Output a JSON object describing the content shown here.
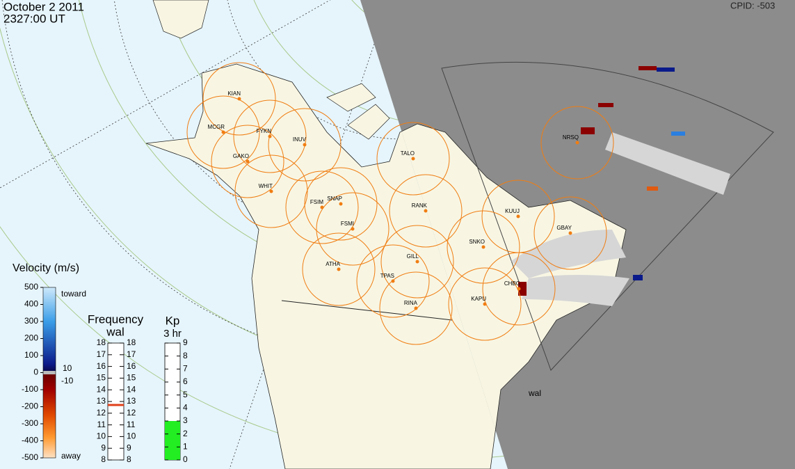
{
  "header": {
    "date": "October 2 2011",
    "time": "2327:00 UT",
    "cpid": "CPID: -503"
  },
  "stations": [
    "KIAN",
    "MCGR",
    "FYKN",
    "INUV",
    "GAKO",
    "WHIT",
    "FSIM",
    "SNAP",
    "FSMI",
    "RANK",
    "TALO",
    "ATHA",
    "GILL",
    "TPAS",
    "RINA",
    "NRSQ",
    "KUUJ",
    "GBAY",
    "SNKO",
    "CHBG",
    "KAPU"
  ],
  "radar_label": "wal",
  "velocity_scale": {
    "title": "Velocity (m/s)",
    "range": [
      -500,
      500
    ],
    "ticks": [
      500,
      400,
      300,
      200,
      100,
      0,
      -100,
      -200,
      -300,
      -400,
      -500
    ],
    "toward": "toward",
    "away": "away",
    "threshold_labels": [
      "10",
      "-10"
    ]
  },
  "frequency": {
    "title": "Frequency",
    "radar": "wal",
    "range": [
      8,
      18
    ],
    "ticks": [
      8,
      9,
      10,
      11,
      12,
      13,
      14,
      15,
      16,
      17,
      18
    ],
    "value": 12.7
  },
  "kp": {
    "title": "Kp",
    "period": "3 hr",
    "range": [
      0,
      9
    ],
    "ticks": [
      0,
      1,
      2,
      3,
      4,
      5,
      6,
      7,
      8,
      9
    ],
    "value": 3
  }
}
